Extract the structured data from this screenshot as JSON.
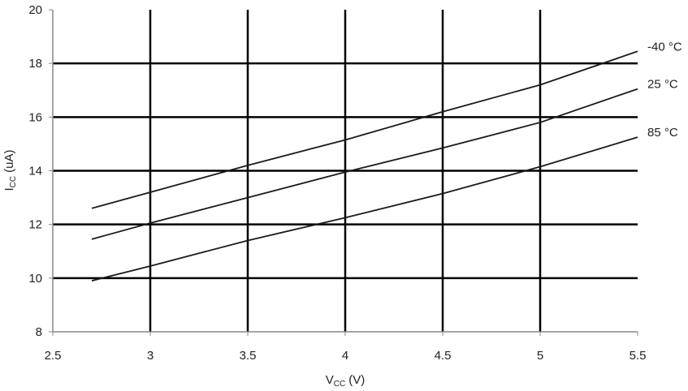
{
  "chart_data": {
    "type": "line",
    "xlabel": {
      "symbol": "V",
      "subscript": "CC",
      "unit": "(V)"
    },
    "ylabel": {
      "symbol": "I",
      "subscript": "CC",
      "unit": "(uA)"
    },
    "x": [
      2.7,
      3,
      3.5,
      4,
      4.5,
      5,
      5.5
    ],
    "series": [
      {
        "name": "-40 °C",
        "color": "#1a1a1a",
        "values": [
          12.6,
          13.2,
          14.2,
          15.15,
          16.2,
          17.2,
          18.45
        ]
      },
      {
        "name": "25 °C",
        "color": "#1a1a1a",
        "values": [
          11.45,
          12.05,
          13.0,
          13.95,
          14.85,
          15.8,
          17.05
        ]
      },
      {
        "name": "85 °C",
        "color": "#1a1a1a",
        "values": [
          9.9,
          10.45,
          11.4,
          12.25,
          13.15,
          14.15,
          15.25
        ]
      }
    ],
    "xlim": [
      2.5,
      5.5
    ],
    "xticks": [
      2.5,
      3,
      3.5,
      4,
      4.5,
      5,
      5.5
    ],
    "ylim": [
      8,
      20
    ],
    "yticks": [
      8,
      10,
      12,
      14,
      16,
      18,
      20
    ],
    "grid": true,
    "grid_color": "#000000"
  }
}
